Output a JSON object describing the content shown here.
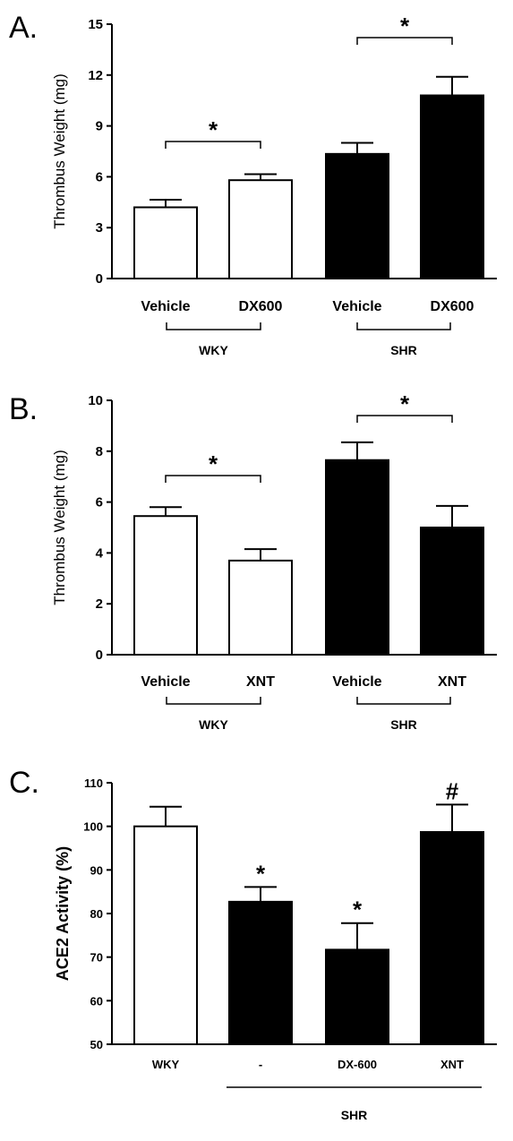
{
  "chart_data": [
    {
      "panel_label": "A.",
      "type": "bar",
      "ylabel": "Thrombus Weight (mg)",
      "ylim": [
        0,
        15
      ],
      "yticks": [
        "0",
        "3",
        "6",
        "9",
        "12",
        "15"
      ],
      "categories": [
        "Vehicle",
        "DX600",
        "Vehicle",
        "DX600"
      ],
      "groups": [
        {
          "label": "WKY",
          "bars": [
            0,
            1
          ]
        },
        {
          "label": "SHR",
          "bars": [
            2,
            3
          ]
        }
      ],
      "values": [
        4.2,
        5.8,
        7.35,
        10.8
      ],
      "errors": [
        0.45,
        0.35,
        0.65,
        1.1
      ],
      "bar_colors": [
        "#ffffff",
        "#ffffff",
        "#000000",
        "#000000"
      ],
      "significance": [
        {
          "from": 0,
          "to": 1,
          "mark": "*"
        },
        {
          "from": 2,
          "to": 3,
          "mark": "*"
        }
      ]
    },
    {
      "panel_label": "B.",
      "type": "bar",
      "ylabel": "Thrombus Weight (mg)",
      "ylim": [
        0,
        10
      ],
      "yticks": [
        "0",
        "2",
        "4",
        "6",
        "8",
        "10"
      ],
      "categories": [
        "Vehicle",
        "XNT",
        "Vehicle",
        "XNT"
      ],
      "groups": [
        {
          "label": "WKY",
          "bars": [
            0,
            1
          ]
        },
        {
          "label": "SHR",
          "bars": [
            2,
            3
          ]
        }
      ],
      "values": [
        5.45,
        3.7,
        7.65,
        5.0
      ],
      "errors": [
        0.35,
        0.45,
        0.7,
        0.85
      ],
      "bar_colors": [
        "#ffffff",
        "#ffffff",
        "#000000",
        "#000000"
      ],
      "significance": [
        {
          "from": 0,
          "to": 1,
          "mark": "*"
        },
        {
          "from": 2,
          "to": 3,
          "mark": "*"
        }
      ]
    },
    {
      "panel_label": "C.",
      "type": "bar",
      "ylabel": "ACE2 Activity (%)",
      "ylim": [
        50,
        110
      ],
      "yticks": [
        "50",
        "60",
        "70",
        "80",
        "90",
        "100",
        "110"
      ],
      "categories": [
        "WKY",
        "-",
        "DX-600",
        "XNT"
      ],
      "groups": [
        {
          "label": "SHR",
          "bars": [
            1,
            3
          ]
        }
      ],
      "values": [
        100,
        82.7,
        71.7,
        98.7
      ],
      "errors": [
        4.5,
        3.4,
        6.1,
        6.3
      ],
      "bar_colors": [
        "#ffffff",
        "#000000",
        "#000000",
        "#000000"
      ],
      "bar_marks": [
        "",
        "*",
        "*",
        "#"
      ]
    }
  ]
}
